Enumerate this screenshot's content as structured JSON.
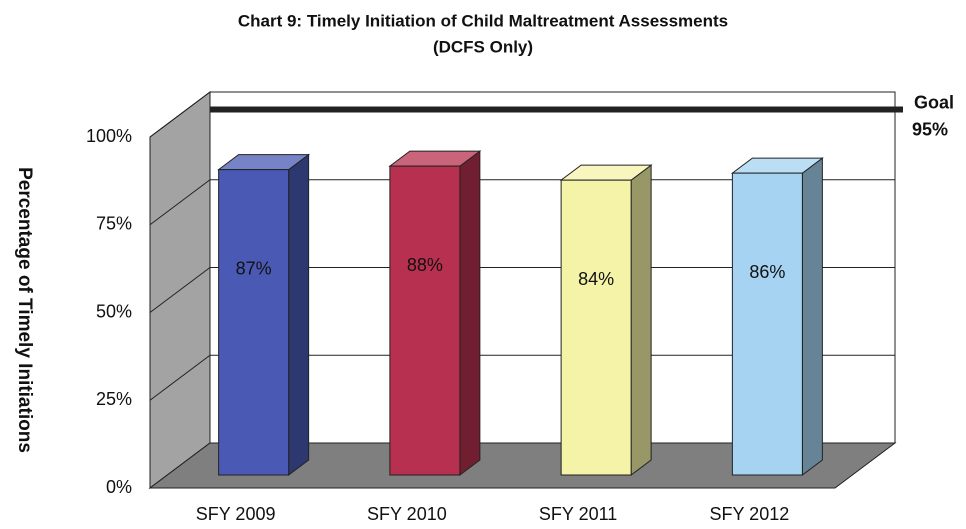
{
  "chart_data": {
    "type": "bar3d",
    "title": "Chart 9:  Timely Initiation of Child Maltreatment Assessments",
    "subtitle": "(DCFS Only)",
    "y_label": "Percentage of Timely Initiations",
    "categories": [
      "SFY 2009",
      "SFY 2010",
      "SFY 2011",
      "SFY 2012"
    ],
    "values": [
      87,
      88,
      84,
      86
    ],
    "value_labels": [
      "87%",
      "88%",
      "84%",
      "86%"
    ],
    "colors": [
      "#4a5ab4",
      "#b8304f",
      "#f5f3a8",
      "#a6d3f2"
    ],
    "ylim": [
      0,
      100
    ],
    "yticks": [
      {
        "value": 0,
        "label": "0%"
      },
      {
        "value": 25,
        "label": "25%"
      },
      {
        "value": 50,
        "label": "50%"
      },
      {
        "value": 75,
        "label": "75%"
      },
      {
        "value": 100,
        "label": "100%"
      }
    ],
    "grid": true,
    "goal": {
      "label": "Goal",
      "value": 95,
      "value_label": "95%"
    }
  }
}
